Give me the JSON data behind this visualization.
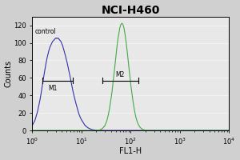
{
  "title": "NCI-H460",
  "xlabel": "FL1-H",
  "ylabel": "Counts",
  "xlim_log": [
    0,
    4
  ],
  "ylim": [
    0,
    130
  ],
  "yticks": [
    0,
    20,
    40,
    60,
    80,
    100,
    120
  ],
  "control_label": "control",
  "m1_label": "M1",
  "m2_label": "M2",
  "control_color": "#3333aa",
  "sample_color": "#44aa44",
  "plot_bg_color": "#e8e8e8",
  "outer_bg_color": "#d0d0d0",
  "title_fontsize": 10,
  "axis_fontsize": 6,
  "label_fontsize": 7,
  "control_peak_log": 0.55,
  "control_sigma": 0.22,
  "control_amplitude": 100,
  "control_shoulder_log": 0.3,
  "control_shoulder_amp": 30,
  "sample_peak_log": 1.82,
  "sample_sigma": 0.14,
  "sample_amplitude": 122
}
